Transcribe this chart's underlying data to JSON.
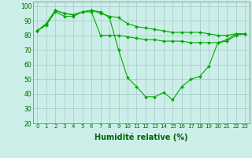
{
  "title": "",
  "xlabel": "Humidité relative (%)",
  "ylabel": "",
  "background_color": "#cceee8",
  "grid_color": "#aacccc",
  "line_color": "#00aa00",
  "marker_color": "#00aa00",
  "xlim": [
    -0.5,
    23.5
  ],
  "ylim": [
    20,
    103
  ],
  "yticks": [
    20,
    30,
    40,
    50,
    60,
    70,
    80,
    90,
    100
  ],
  "xticks": [
    0,
    1,
    2,
    3,
    4,
    5,
    6,
    7,
    8,
    9,
    10,
    11,
    12,
    13,
    14,
    15,
    16,
    17,
    18,
    19,
    20,
    21,
    22,
    23
  ],
  "xtick_labels": [
    "0",
    "1",
    "2",
    "3",
    "4",
    "5",
    "6",
    "7",
    "8",
    "9",
    "10",
    "11",
    "12",
    "13",
    "14",
    "15",
    "16",
    "17",
    "18",
    "19",
    "20",
    "21",
    "22",
    "23"
  ],
  "series": [
    [
      83,
      88,
      97,
      95,
      94,
      96,
      97,
      96,
      92,
      70,
      51,
      45,
      38,
      38,
      41,
      36,
      45,
      50,
      52,
      59,
      75,
      77,
      81,
      81
    ],
    [
      83,
      88,
      97,
      95,
      94,
      96,
      97,
      95,
      93,
      92,
      88,
      86,
      85,
      84,
      83,
      82,
      82,
      82,
      82,
      81,
      80,
      80,
      81,
      81
    ],
    [
      83,
      87,
      96,
      93,
      93,
      96,
      96,
      80,
      80,
      80,
      79,
      78,
      77,
      77,
      76,
      76,
      76,
      75,
      75,
      75,
      75,
      76,
      80,
      81
    ]
  ],
  "xlabel_fontsize": 7,
  "tick_fontsize": 5,
  "linewidth": 0.8,
  "markersize": 2.0
}
